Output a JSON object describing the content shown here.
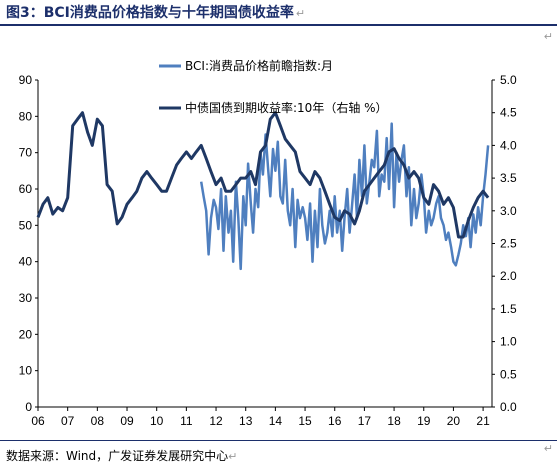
{
  "header": {
    "title": "图3：BCI消费品价格指数与十年期国债收益率",
    "return_mark": "↵"
  },
  "source": {
    "text": "数据来源：Wind，广发证券发展研究中心",
    "return_mark": "↵"
  },
  "corner_mark": "↵",
  "chart_data": {
    "type": "line",
    "x_tick_labels": [
      "06",
      "07",
      "08",
      "09",
      "10",
      "11",
      "12",
      "13",
      "14",
      "15",
      "16",
      "17",
      "18",
      "19",
      "20",
      "21"
    ],
    "x_range": [
      2006.0,
      2021.3
    ],
    "y_left": {
      "range": [
        0,
        90
      ],
      "ticks": [
        "0",
        "10",
        "20",
        "30",
        "40",
        "50",
        "60",
        "70",
        "80",
        "90"
      ]
    },
    "y_right": {
      "range": [
        0.0,
        5.0
      ],
      "ticks": [
        "0.0",
        "0.5",
        "1.0",
        "1.5",
        "2.0",
        "2.5",
        "3.0",
        "3.5",
        "4.0",
        "4.5",
        "5.0"
      ]
    },
    "grid": false,
    "legend": "top-center",
    "series": [
      {
        "name": "BCI:消费品价格前瞻指数:月",
        "axis": "left",
        "color": "#4f7fbf",
        "x": [
          2011.5,
          2011.58,
          2011.67,
          2011.75,
          2011.83,
          2011.92,
          2012.0,
          2012.08,
          2012.17,
          2012.25,
          2012.33,
          2012.42,
          2012.5,
          2012.58,
          2012.67,
          2012.75,
          2012.83,
          2012.92,
          2013.0,
          2013.08,
          2013.17,
          2013.25,
          2013.33,
          2013.42,
          2013.5,
          2013.58,
          2013.67,
          2013.75,
          2013.83,
          2013.92,
          2014.0,
          2014.08,
          2014.17,
          2014.25,
          2014.33,
          2014.42,
          2014.5,
          2014.58,
          2014.67,
          2014.75,
          2014.83,
          2014.92,
          2015.0,
          2015.08,
          2015.17,
          2015.25,
          2015.33,
          2015.42,
          2015.5,
          2015.58,
          2015.67,
          2015.75,
          2015.83,
          2015.92,
          2016.0,
          2016.08,
          2016.17,
          2016.25,
          2016.33,
          2016.42,
          2016.5,
          2016.58,
          2016.67,
          2016.75,
          2016.83,
          2016.92,
          2017.0,
          2017.08,
          2017.17,
          2017.25,
          2017.33,
          2017.42,
          2017.5,
          2017.58,
          2017.67,
          2017.75,
          2017.83,
          2017.92,
          2018.0,
          2018.08,
          2018.17,
          2018.25,
          2018.33,
          2018.42,
          2018.5,
          2018.58,
          2018.67,
          2018.75,
          2018.83,
          2018.92,
          2019.0,
          2019.08,
          2019.17,
          2019.25,
          2019.33,
          2019.42,
          2019.5,
          2019.58,
          2019.67,
          2019.75,
          2019.83,
          2019.92,
          2020.0,
          2020.08,
          2020.17,
          2020.25,
          2020.33,
          2020.42,
          2020.5,
          2020.58,
          2020.67,
          2020.75,
          2020.83,
          2020.92,
          2021.0,
          2021.08,
          2021.17
        ],
        "values": [
          62,
          58,
          54,
          42,
          52,
          57,
          55,
          49,
          60,
          43,
          58,
          48,
          54,
          40,
          62,
          52,
          38,
          58,
          50,
          67,
          56,
          48,
          60,
          55,
          70,
          64,
          75,
          66,
          58,
          71,
          65,
          73,
          58,
          56,
          68,
          54,
          50,
          60,
          44,
          57,
          52,
          55,
          52,
          46,
          56,
          40,
          54,
          44,
          60,
          50,
          45,
          48,
          54,
          47,
          58,
          48,
          54,
          43,
          52,
          60,
          48,
          55,
          64,
          52,
          68,
          58,
          72,
          56,
          62,
          68,
          66,
          76,
          58,
          64,
          62,
          74,
          60,
          78,
          55,
          70,
          62,
          68,
          72,
          58,
          66,
          50,
          60,
          52,
          56,
          64,
          58,
          48,
          54,
          50,
          52,
          56,
          58,
          52,
          50,
          46,
          48,
          44,
          40,
          39,
          42,
          45,
          50,
          47,
          52,
          44,
          53,
          48,
          55,
          50,
          58,
          64,
          72
        ]
      },
      {
        "name": "中债国债到期收益率:10年（右轴 %）",
        "axis": "right",
        "color": "#1f3864",
        "x": [
          2006.0,
          2006.17,
          2006.33,
          2006.5,
          2006.67,
          2006.83,
          2007.0,
          2007.17,
          2007.33,
          2007.5,
          2007.67,
          2007.83,
          2008.0,
          2008.17,
          2008.33,
          2008.5,
          2008.67,
          2008.83,
          2009.0,
          2009.17,
          2009.33,
          2009.5,
          2009.67,
          2009.83,
          2010.0,
          2010.17,
          2010.33,
          2010.5,
          2010.67,
          2010.83,
          2011.0,
          2011.17,
          2011.33,
          2011.5,
          2011.67,
          2011.83,
          2012.0,
          2012.17,
          2012.33,
          2012.5,
          2012.67,
          2012.83,
          2013.0,
          2013.17,
          2013.33,
          2013.5,
          2013.67,
          2013.83,
          2014.0,
          2014.17,
          2014.33,
          2014.5,
          2014.67,
          2014.83,
          2015.0,
          2015.17,
          2015.33,
          2015.5,
          2015.67,
          2015.83,
          2016.0,
          2016.17,
          2016.33,
          2016.5,
          2016.67,
          2016.83,
          2017.0,
          2017.17,
          2017.33,
          2017.5,
          2017.67,
          2017.83,
          2018.0,
          2018.17,
          2018.33,
          2018.5,
          2018.67,
          2018.83,
          2019.0,
          2019.17,
          2019.33,
          2019.5,
          2019.67,
          2019.83,
          2020.0,
          2020.17,
          2020.33,
          2020.5,
          2020.67,
          2020.83,
          2021.0,
          2021.17
        ],
        "values": [
          2.9,
          3.1,
          3.2,
          2.95,
          3.05,
          3.0,
          3.2,
          4.3,
          4.4,
          4.5,
          4.2,
          4.0,
          4.4,
          4.3,
          3.4,
          3.3,
          2.8,
          2.9,
          3.1,
          3.2,
          3.3,
          3.5,
          3.6,
          3.5,
          3.4,
          3.3,
          3.3,
          3.5,
          3.7,
          3.8,
          3.9,
          3.8,
          3.9,
          4.0,
          3.8,
          3.6,
          3.4,
          3.5,
          3.3,
          3.3,
          3.4,
          3.5,
          3.5,
          3.6,
          3.4,
          3.9,
          4.0,
          4.4,
          4.5,
          4.3,
          4.1,
          4.0,
          3.9,
          3.6,
          3.5,
          3.4,
          3.6,
          3.5,
          3.3,
          3.1,
          2.9,
          2.85,
          3.0,
          2.95,
          2.8,
          3.0,
          3.3,
          3.4,
          3.5,
          3.6,
          3.7,
          3.9,
          3.95,
          3.8,
          3.7,
          3.5,
          3.6,
          3.5,
          3.2,
          3.1,
          3.4,
          3.3,
          3.1,
          3.2,
          3.05,
          2.6,
          2.6,
          2.85,
          3.05,
          3.2,
          3.3,
          3.2
        ]
      }
    ]
  }
}
